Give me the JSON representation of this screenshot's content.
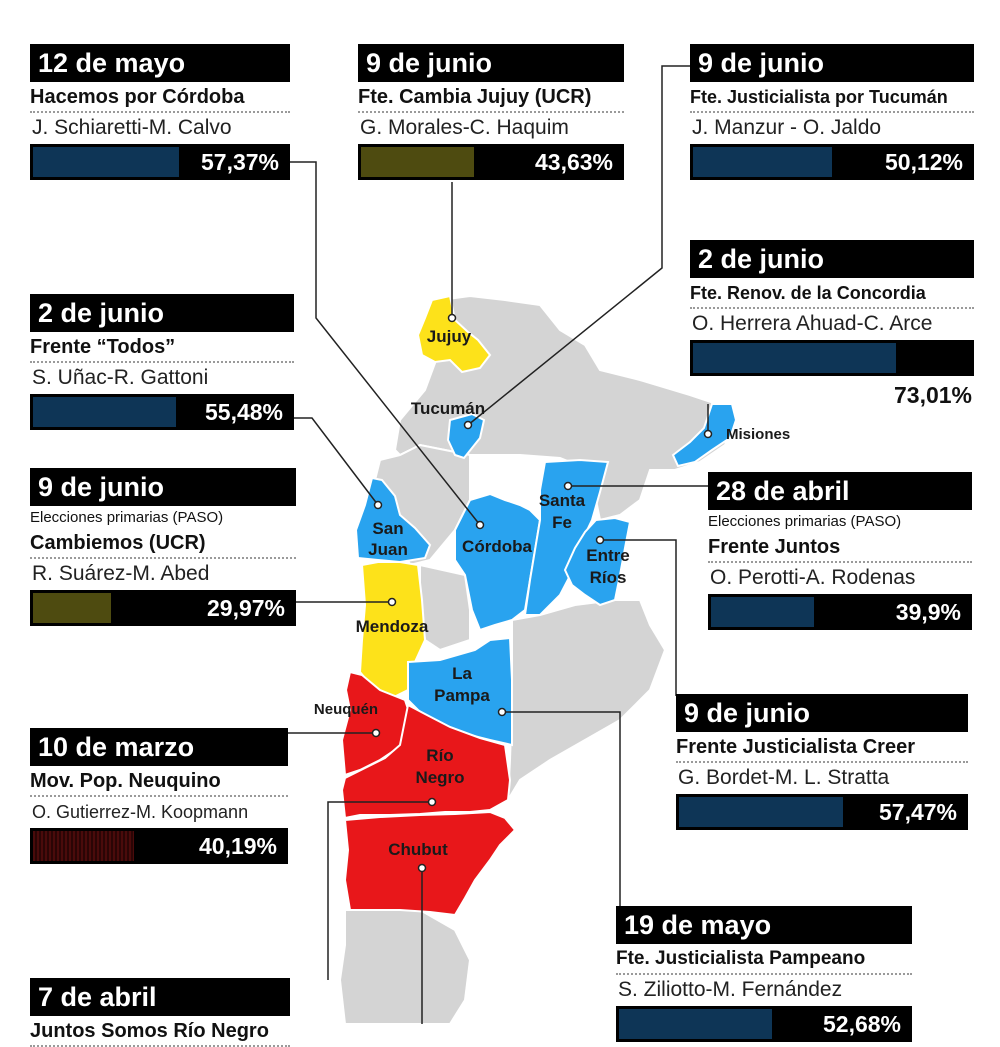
{
  "colors": {
    "land": "#d4d4d4",
    "blue_province": "#29a3ef",
    "yellow_province": "#fde21a",
    "red_province": "#e8171a",
    "bar_navy": "#0e3556",
    "bar_olive": "#4e4b10",
    "bar_maroon": "#4a0b0b",
    "leader_line": "#222222"
  },
  "provinces": {
    "jujuy": "Jujuy",
    "tucuman": "Tucumán",
    "misiones": "Misiones",
    "santa_fe_1": "Santa",
    "santa_fe_2": "Fe",
    "san_juan_1": "San",
    "san_juan_2": "Juan",
    "cordoba": "Córdoba",
    "entre_rios_1": "Entre",
    "entre_rios_2": "Ríos",
    "mendoza": "Mendoza",
    "la_pampa_1": "La",
    "la_pampa_2": "Pampa",
    "neuquen": "Neuquén",
    "rio_negro_1": "Río",
    "rio_negro_2": "Negro",
    "chubut": "Chubut"
  },
  "cards": {
    "cordoba": {
      "date": "12 de mayo",
      "party": "Hacemos por Córdoba",
      "candidates": "J. Schiaretti-M. Calvo",
      "percent": "57,37%",
      "share": 0.5737,
      "bar_color": "navy"
    },
    "jujuy": {
      "date": "9 de junio",
      "party": "Fte. Cambia Jujuy (UCR)",
      "candidates": "G. Morales-C. Haquim",
      "percent": "43,63%",
      "share": 0.4363,
      "bar_color": "olive"
    },
    "tucuman": {
      "date": "9 de junio",
      "party": "Fte. Justicialista por Tucumán",
      "candidates": "J. Manzur - O. Jaldo",
      "percent": "50,12%",
      "share": 0.5012,
      "bar_color": "navy"
    },
    "misiones": {
      "date": "2 de junio",
      "party": "Fte. Renov. de la Concordia",
      "candidates": "O. Herrera Ahuad-C. Arce",
      "percent": "73,01%",
      "share": 0.7301,
      "bar_color": "navy"
    },
    "san_juan": {
      "date": "2 de junio",
      "party": "Frente “Todos”",
      "candidates": "S. Uñac-R. Gattoni",
      "percent": "55,48%",
      "share": 0.5548,
      "bar_color": "navy"
    },
    "mendoza": {
      "date": "9 de junio",
      "note": "Elecciones primarias (PASO)",
      "party": "Cambiemos (UCR)",
      "candidates": "R. Suárez-M. Abed",
      "percent": "29,97%",
      "share": 0.2997,
      "bar_color": "olive"
    },
    "santa_fe": {
      "date": "28 de abril",
      "note": "Elecciones primarias (PASO)",
      "party": "Frente Juntos",
      "candidates": "O. Perotti-A. Rodenas",
      "percent": "39,9%",
      "share": 0.399,
      "bar_color": "navy"
    },
    "entre_rios": {
      "date": "9 de junio",
      "party": "Frente Justicialista Creer",
      "candidates": "G. Bordet-M. L. Stratta",
      "percent": "57,47%",
      "share": 0.5747,
      "bar_color": "navy"
    },
    "neuquen": {
      "date": "10 de marzo",
      "party": "Mov. Pop. Neuquino",
      "candidates": "O. Gutierrez-M. Koopmann",
      "percent": "40,19%",
      "share": 0.4019,
      "bar_color": "maroon"
    },
    "la_pampa": {
      "date": "19 de mayo",
      "party": "Fte. Justicialista Pampeano",
      "candidates": "S. Ziliotto-M. Fernández",
      "percent": "52,68%",
      "share": 0.5268,
      "bar_color": "navy"
    },
    "rio_negro": {
      "date": "7 de abril",
      "party": "Juntos Somos Río Negro"
    }
  }
}
